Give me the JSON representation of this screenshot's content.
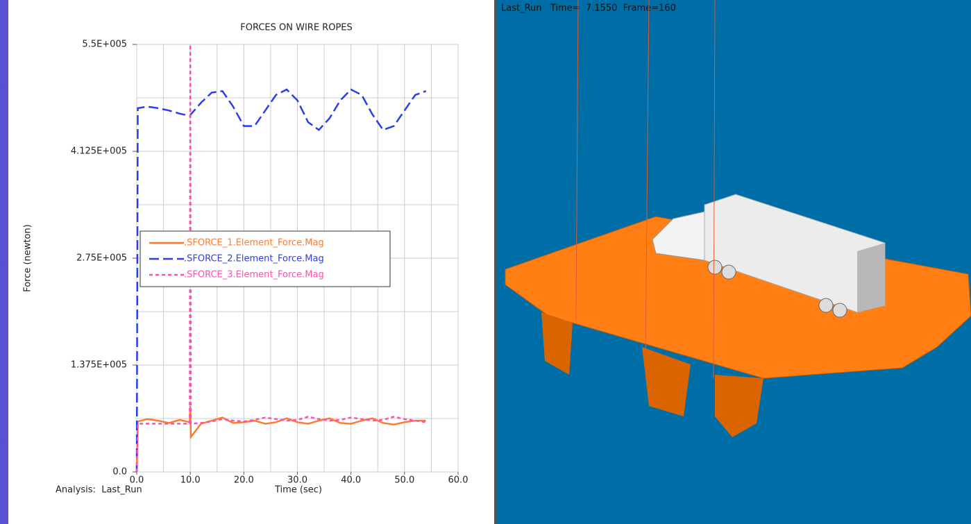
{
  "chart_data": {
    "type": "line",
    "title": "FORCES ON WIRE ROPES",
    "x_label": "Time (sec)",
    "y_label": "Force (newton)",
    "x": [
      0,
      0.2,
      2,
      4,
      6,
      8,
      9.9,
      10,
      10.1,
      12,
      14,
      16,
      18,
      20,
      22,
      24,
      26,
      28,
      30,
      32,
      34,
      36,
      38,
      40,
      42,
      44,
      46,
      48,
      50,
      52,
      54
    ],
    "series": [
      {
        "name": ".SFORCE_1.Element_Force.Mag",
        "color": "#ff7a30",
        "dash": "solid",
        "values": [
          0,
          65000,
          68000,
          66000,
          63000,
          67000,
          64000,
          85000,
          45000,
          62000,
          66000,
          70000,
          63000,
          64000,
          66000,
          62000,
          64000,
          69000,
          64000,
          62000,
          66000,
          69000,
          63000,
          62000,
          66000,
          69000,
          63000,
          61000,
          64000,
          66000,
          66000
        ]
      },
      {
        "name": ".SFORCE_2.Element_Force.Mag",
        "color": "#2a3cf0",
        "dash": "dashed",
        "values": [
          0,
          468000,
          470000,
          468000,
          465000,
          461000,
          458000,
          458000,
          460000,
          475000,
          488000,
          490000,
          470000,
          445000,
          445000,
          465000,
          485000,
          492000,
          478000,
          450000,
          440000,
          455000,
          478000,
          492000,
          485000,
          460000,
          440000,
          445000,
          465000,
          485000,
          490000
        ]
      },
      {
        "name": ".SFORCE_3.Element_Force.Mag",
        "color": "#ff4fb0",
        "dash": "dotted",
        "values": [
          0,
          62000,
          62000,
          62000,
          62000,
          62000,
          62000,
          550000,
          62000,
          63000,
          65000,
          68000,
          66000,
          65000,
          67000,
          70000,
          68000,
          66000,
          67000,
          71000,
          68000,
          66000,
          67000,
          70000,
          68000,
          66000,
          67000,
          71000,
          68000,
          66000,
          64000
        ]
      }
    ],
    "xlim": [
      0,
      60
    ],
    "xticks": [
      {
        "value": 0,
        "label": "0.0"
      },
      {
        "value": 10,
        "label": "10.0"
      },
      {
        "value": 20,
        "label": "20.0"
      },
      {
        "value": 30,
        "label": "30.0"
      },
      {
        "value": 40,
        "label": "40.0"
      },
      {
        "value": 50,
        "label": "50.0"
      },
      {
        "value": 60,
        "label": "60.0"
      }
    ],
    "xgrid": [
      0,
      5,
      10,
      15,
      20,
      25,
      30,
      35,
      40,
      45,
      50,
      55,
      60
    ],
    "ylim": [
      0,
      550000
    ],
    "yticks": [
      {
        "value": 0,
        "label": "0.0"
      },
      {
        "value": 137500,
        "label": "1.375E+005"
      },
      {
        "value": 275000,
        "label": "2.75E+005"
      },
      {
        "value": 412500,
        "label": "4.125E+005"
      },
      {
        "value": 550000,
        "label": "5.5E+005"
      }
    ],
    "ygrid": [
      0,
      68750,
      137500,
      206250,
      275000,
      343750,
      412500,
      481250,
      550000
    ],
    "grid": true,
    "legend": "center-left"
  },
  "analysis": "Analysis:  Last_Run",
  "viewport": {
    "status": "Last_Run   Time=  7.1550  Frame=160"
  }
}
